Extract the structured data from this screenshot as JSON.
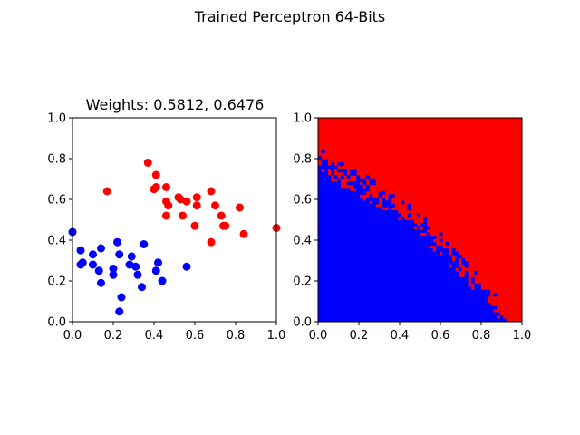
{
  "figure": {
    "suptitle": "Trained Perceptron 64-Bits"
  },
  "chart_data": [
    {
      "type": "scatter",
      "title": "Weights: 0.5812, 0.6476",
      "xlim": [
        0,
        1
      ],
      "ylim": [
        0,
        1
      ],
      "xticks": [
        "0.0",
        "0.2",
        "0.4",
        "0.6",
        "0.8",
        "1.0"
      ],
      "yticks": [
        "0.0",
        "0.2",
        "0.4",
        "0.6",
        "0.8",
        "1.0"
      ],
      "series": [
        {
          "color": "#0000ff",
          "points": [
            [
              0.0,
              0.44
            ],
            [
              0.04,
              0.35
            ],
            [
              0.04,
              0.28
            ],
            [
              0.05,
              0.29
            ],
            [
              0.1,
              0.33
            ],
            [
              0.1,
              0.28
            ],
            [
              0.13,
              0.25
            ],
            [
              0.14,
              0.36
            ],
            [
              0.14,
              0.19
            ],
            [
              0.2,
              0.23
            ],
            [
              0.2,
              0.26
            ],
            [
              0.22,
              0.39
            ],
            [
              0.23,
              0.33
            ],
            [
              0.24,
              0.12
            ],
            [
              0.23,
              0.05
            ],
            [
              0.28,
              0.28
            ],
            [
              0.29,
              0.32
            ],
            [
              0.31,
              0.27
            ],
            [
              0.32,
              0.23
            ],
            [
              0.34,
              0.17
            ],
            [
              0.35,
              0.38
            ],
            [
              0.41,
              0.25
            ],
            [
              0.42,
              0.29
            ],
            [
              0.44,
              0.2
            ],
            [
              0.56,
              0.27
            ]
          ]
        },
        {
          "color": "#ff0000",
          "points": [
            [
              0.17,
              0.64
            ],
            [
              0.37,
              0.78
            ],
            [
              0.4,
              0.65
            ],
            [
              0.41,
              0.72
            ],
            [
              0.41,
              0.66
            ],
            [
              0.46,
              0.66
            ],
            [
              0.46,
              0.59
            ],
            [
              0.46,
              0.52
            ],
            [
              0.47,
              0.57
            ],
            [
              0.52,
              0.61
            ],
            [
              0.53,
              0.6
            ],
            [
              0.54,
              0.52
            ],
            [
              0.56,
              0.59
            ],
            [
              0.6,
              0.47
            ],
            [
              0.61,
              0.57
            ],
            [
              0.61,
              0.61
            ],
            [
              0.68,
              0.64
            ],
            [
              0.68,
              0.39
            ],
            [
              0.7,
              0.57
            ],
            [
              0.73,
              0.52
            ],
            [
              0.74,
              0.47
            ],
            [
              0.75,
              0.47
            ],
            [
              0.82,
              0.56
            ],
            [
              0.84,
              0.43
            ],
            [
              1.0,
              0.46
            ]
          ]
        }
      ]
    },
    {
      "type": "heatmap",
      "title": "",
      "xlim": [
        0,
        1
      ],
      "ylim": [
        0,
        1
      ],
      "xticks": [
        "0.0",
        "0.2",
        "0.4",
        "0.6",
        "0.8",
        "1.0"
      ],
      "yticks": [
        "0.0",
        "0.2",
        "0.4",
        "0.6",
        "0.8",
        "1.0"
      ],
      "classes": [
        {
          "color": "#0000ff"
        },
        {
          "color": "#ff0000"
        }
      ],
      "grid_resolution": 64,
      "boundary_y_at_x": [
        [
          0.0,
          0.81
        ],
        [
          0.05,
          0.77
        ],
        [
          0.1,
          0.73
        ],
        [
          0.15,
          0.7
        ],
        [
          0.2,
          0.67
        ],
        [
          0.25,
          0.65
        ],
        [
          0.3,
          0.62
        ],
        [
          0.35,
          0.59
        ],
        [
          0.4,
          0.56
        ],
        [
          0.45,
          0.52
        ],
        [
          0.5,
          0.47
        ],
        [
          0.55,
          0.43
        ],
        [
          0.6,
          0.38
        ],
        [
          0.65,
          0.33
        ],
        [
          0.7,
          0.27
        ],
        [
          0.75,
          0.22
        ],
        [
          0.8,
          0.18
        ],
        [
          0.85,
          0.12
        ],
        [
          0.88,
          0.06
        ],
        [
          0.92,
          0.0
        ]
      ]
    }
  ]
}
